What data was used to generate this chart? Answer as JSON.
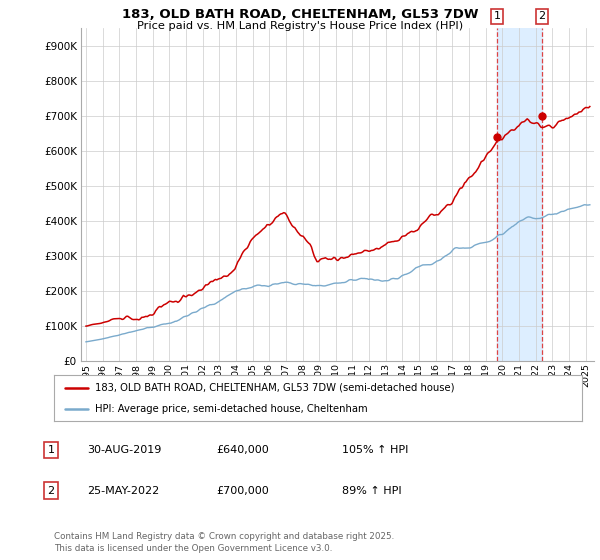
{
  "title": "183, OLD BATH ROAD, CHELTENHAM, GL53 7DW",
  "subtitle": "Price paid vs. HM Land Registry's House Price Index (HPI)",
  "ytick_values": [
    0,
    100000,
    200000,
    300000,
    400000,
    500000,
    600000,
    700000,
    800000,
    900000
  ],
  "ylim": [
    0,
    950000
  ],
  "xlim_start": 1994.7,
  "xlim_end": 2025.5,
  "red_color": "#cc0000",
  "blue_color": "#7aaacc",
  "shade_color": "#ddeeff",
  "marker1_date": 2019.67,
  "marker1_value": 640000,
  "marker2_date": 2022.38,
  "marker2_value": 700000,
  "legend_red": "183, OLD BATH ROAD, CHELTENHAM, GL53 7DW (semi-detached house)",
  "legend_blue": "HPI: Average price, semi-detached house, Cheltenham",
  "table_rows": [
    [
      "1",
      "30-AUG-2019",
      "£640,000",
      "105% ↑ HPI"
    ],
    [
      "2",
      "25-MAY-2022",
      "£700,000",
      "89% ↑ HPI"
    ]
  ],
  "footnote": "Contains HM Land Registry data © Crown copyright and database right 2025.\nThis data is licensed under the Open Government Licence v3.0.",
  "background_color": "#ffffff",
  "grid_color": "#cccccc",
  "vline_color": "#dd4444"
}
